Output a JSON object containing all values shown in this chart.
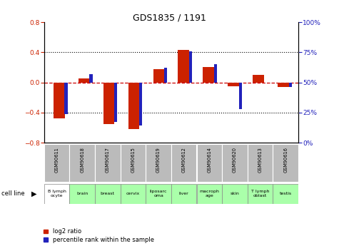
{
  "title": "GDS1835 / 1191",
  "samples": [
    "GSM90611",
    "GSM90618",
    "GSM90617",
    "GSM90615",
    "GSM90619",
    "GSM90612",
    "GSM90614",
    "GSM90620",
    "GSM90613",
    "GSM90616"
  ],
  "cell_lines": [
    "B lymph\nocyte",
    "brain",
    "breast",
    "cervix",
    "liposarc\noma",
    "liver",
    "macroph\nage",
    "skin",
    "T lymph\noblast",
    "testis"
  ],
  "cell_bg": [
    "#ffffff",
    "#aaffaa",
    "#aaffaa",
    "#aaffaa",
    "#aaffaa",
    "#aaffaa",
    "#aaffaa",
    "#aaffaa",
    "#aaffaa",
    "#aaffaa"
  ],
  "log2_ratio": [
    -0.48,
    0.05,
    -0.55,
    -0.62,
    0.18,
    0.43,
    0.2,
    -0.05,
    0.1,
    -0.06
  ],
  "percentile_rank": [
    24,
    57,
    17,
    14,
    62,
    76,
    65,
    28,
    50,
    46
  ],
  "ylim_left": [
    -0.8,
    0.8
  ],
  "ylim_right": [
    0,
    100
  ],
  "yticks_left": [
    -0.8,
    -0.4,
    0.0,
    0.4,
    0.8
  ],
  "yticks_right": [
    0,
    25,
    50,
    75,
    100
  ],
  "red_color": "#cc2200",
  "blue_color": "#2222bb",
  "dashed_line_color": "#cc0000",
  "sample_bg_color": "#bbbbbb",
  "legend_red": "log2 ratio",
  "legend_blue": "percentile rank within the sample"
}
